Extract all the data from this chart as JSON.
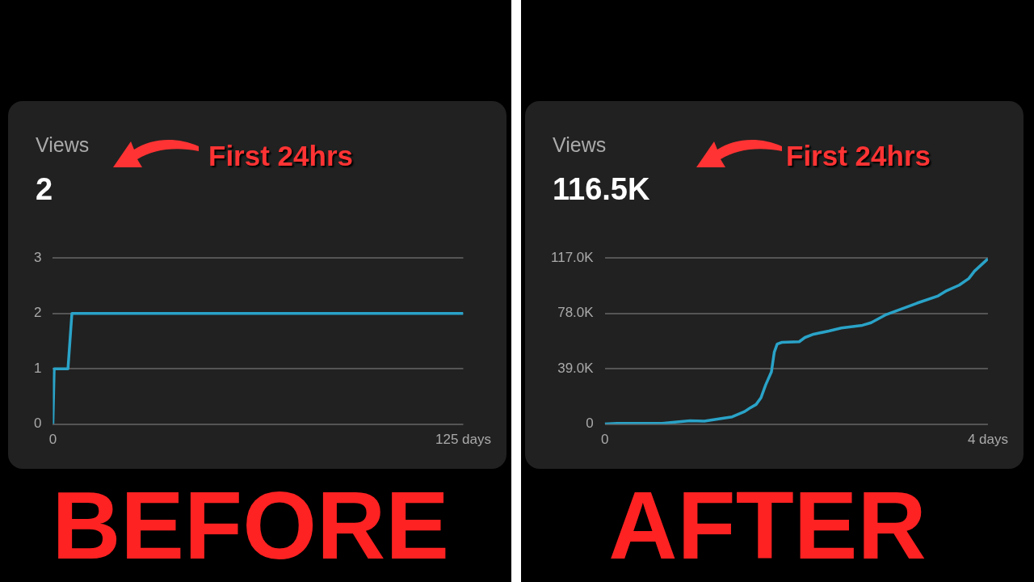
{
  "chart_data": [
    {
      "type": "line",
      "title": "Views",
      "subtitle": "2",
      "annotations": [
        "First 24hrs",
        "BEFORE"
      ],
      "color": "#2aa3c8",
      "x": [
        0,
        0.4,
        4.6,
        5.8,
        125
      ],
      "values": [
        0,
        1,
        1,
        2,
        2
      ],
      "xlim": [
        0,
        125
      ],
      "xticks": [
        0,
        {
          "value": 125,
          "label": "125 days"
        }
      ],
      "ylim": [
        0,
        3
      ],
      "yticks": [
        0,
        1,
        2,
        3
      ],
      "grid": "y"
    },
    {
      "type": "line",
      "title": "Views",
      "subtitle": "116.5K",
      "annotations": [
        "First 24hrs",
        "AFTER"
      ],
      "color": "#2aa3c8",
      "x": [
        0,
        0.13,
        0.6,
        0.73,
        0.89,
        1.04,
        1.23,
        1.33,
        1.46,
        1.52,
        1.58,
        1.63,
        1.68,
        1.74,
        1.77,
        1.8,
        1.85,
        2.03,
        2.09,
        2.18,
        2.34,
        2.47,
        2.69,
        2.78,
        2.94,
        3.1,
        3.26,
        3.48,
        3.57,
        3.7,
        3.8,
        3.86,
        4
      ],
      "values": [
        0,
        500,
        500,
        1400,
        2300,
        2100,
        4100,
        5100,
        8800,
        11500,
        13800,
        18400,
        27600,
        36800,
        50700,
        56400,
        57600,
        58000,
        61000,
        63300,
        65600,
        67700,
        69600,
        71400,
        77200,
        81100,
        85200,
        90300,
        94000,
        97900,
        102500,
        107800,
        116500
      ],
      "xlim": [
        0,
        4
      ],
      "xticks": [
        0,
        {
          "value": 4,
          "label": "4 days"
        }
      ],
      "ylim": [
        0,
        117000
      ],
      "yticks": [
        0,
        {
          "value": 39000,
          "label": "39.0K"
        },
        {
          "value": 78000,
          "label": "78.0K"
        },
        {
          "value": 117000,
          "label": "117.0K"
        }
      ],
      "grid": "y"
    }
  ]
}
